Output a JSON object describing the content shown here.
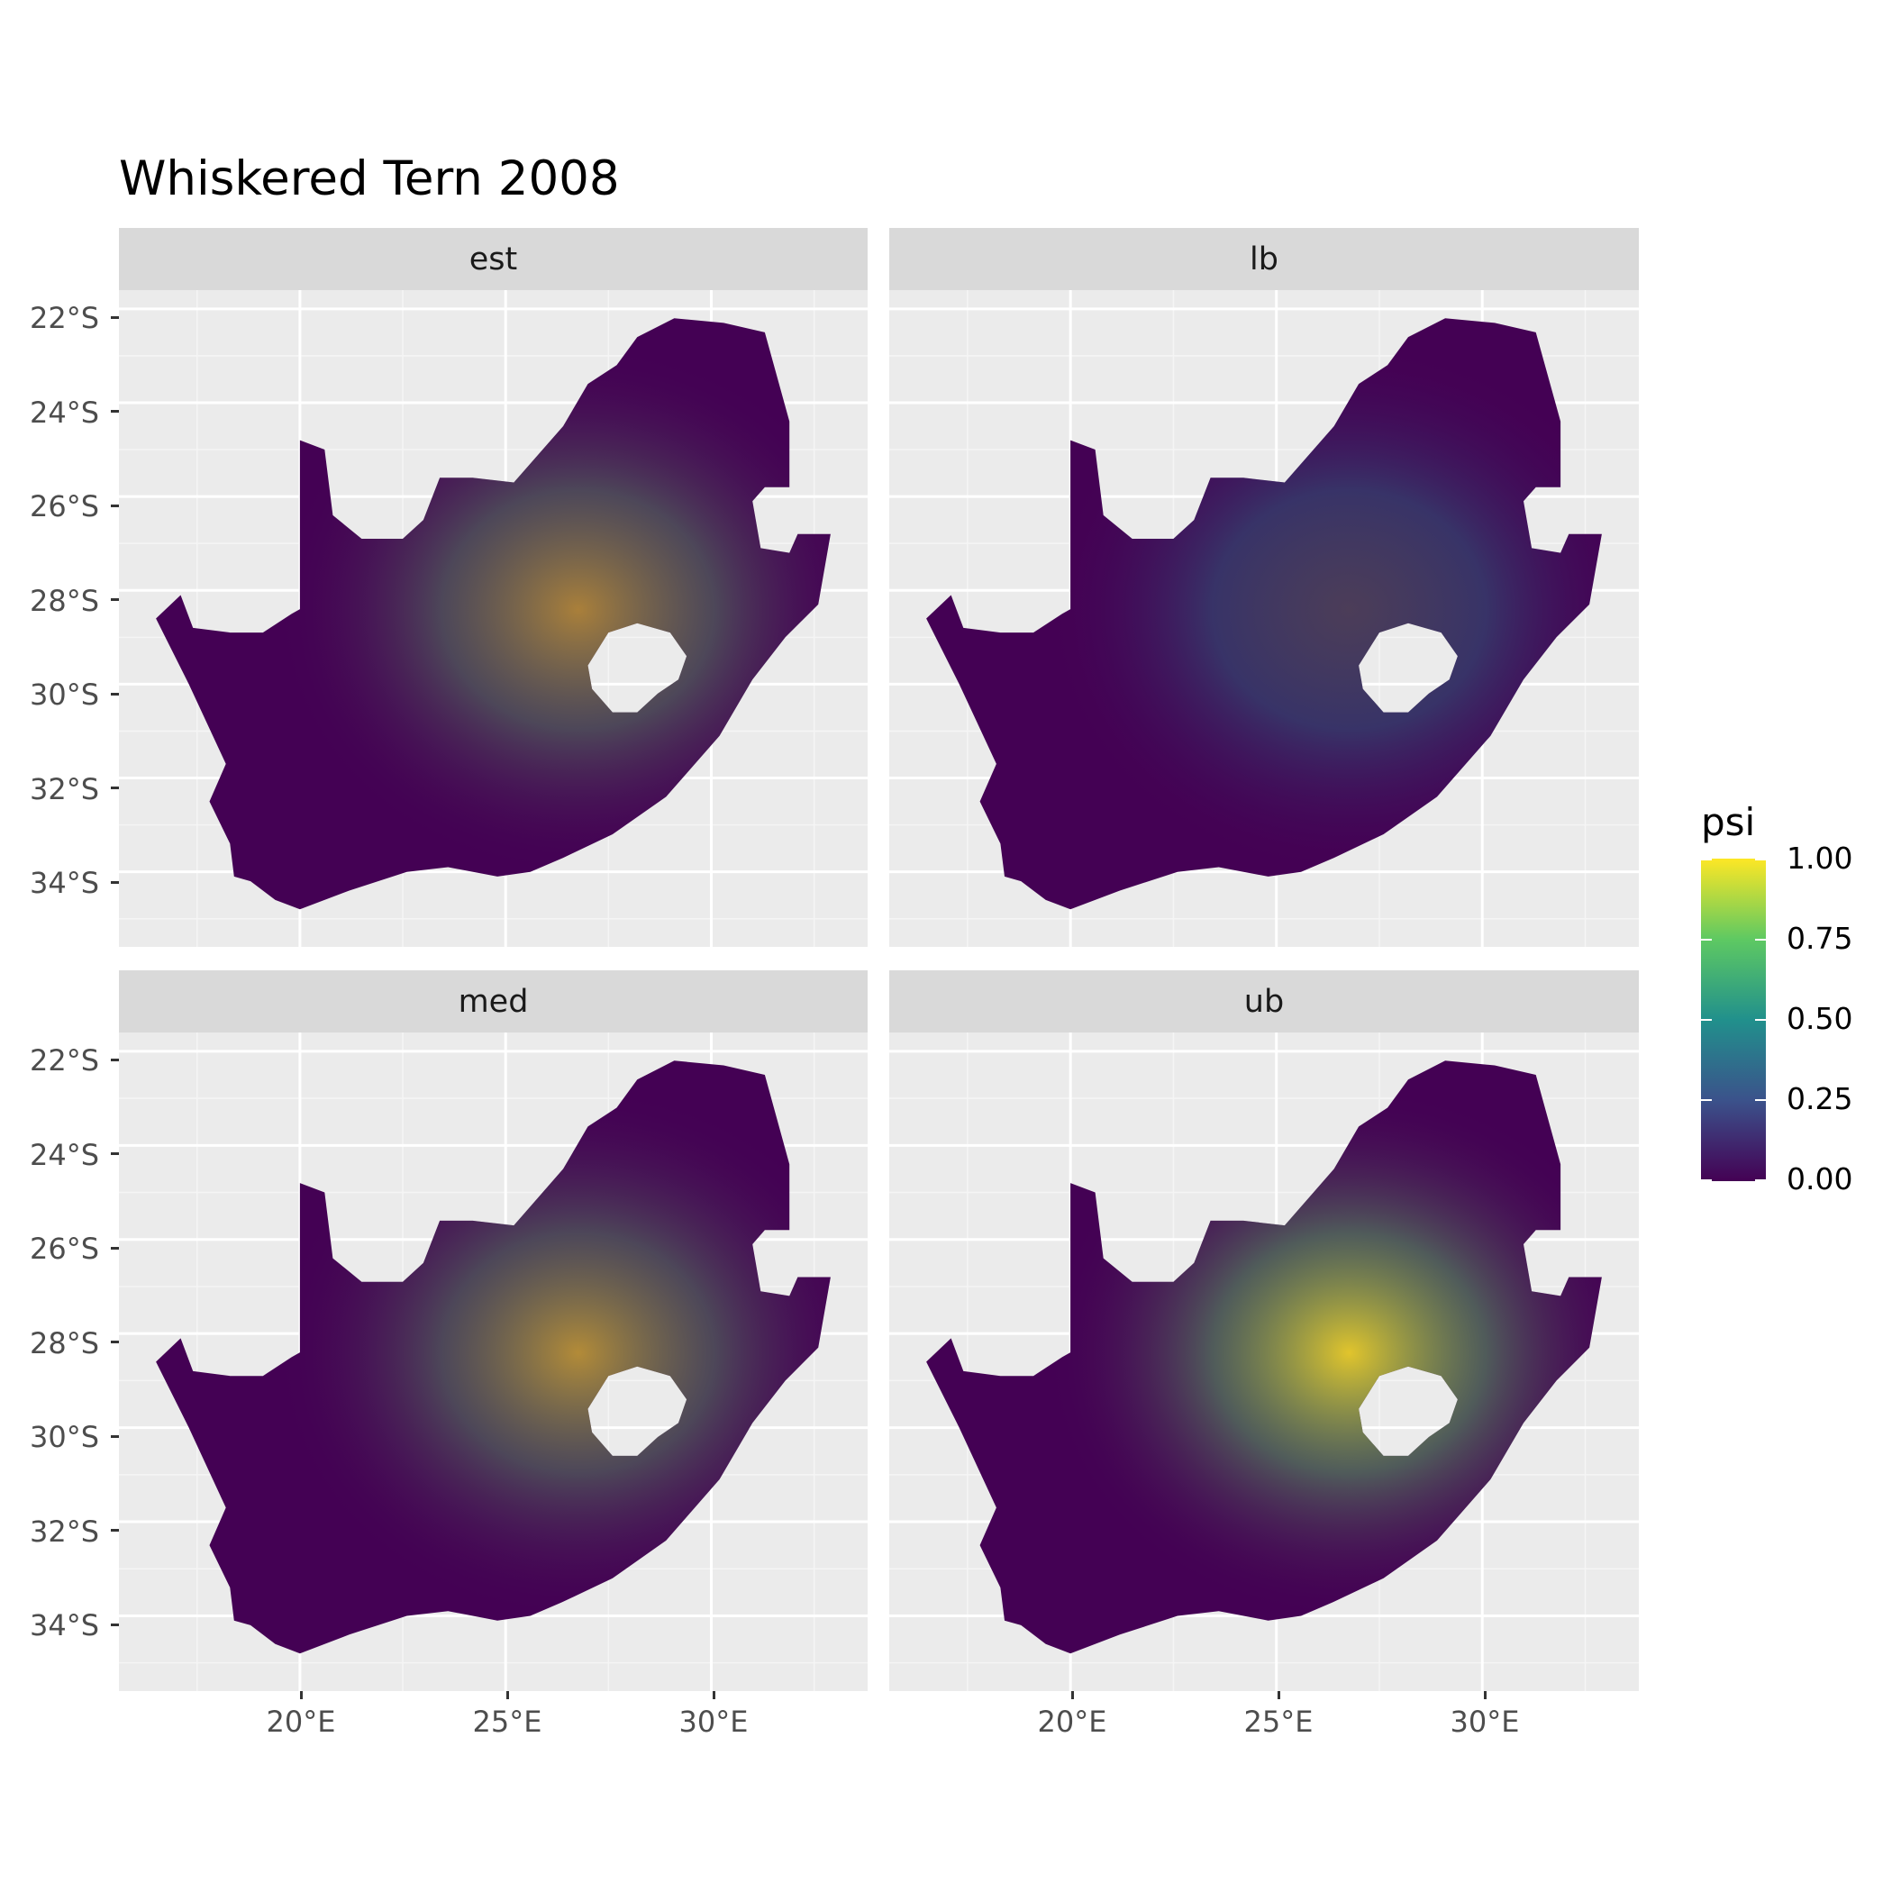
{
  "title": "Whiskered Tern 2008",
  "chart_data": {
    "type": "heatmap",
    "title": "Whiskered Tern 2008",
    "panels": [
      "est",
      "lb",
      "med",
      "ub"
    ],
    "value_label": "psi",
    "value_range": [
      0,
      1
    ],
    "x_ticks": [
      "20°E",
      "25°E",
      "30°E"
    ],
    "x_tick_values": [
      20,
      25,
      30
    ],
    "y_ticks": [
      "22°S",
      "24°S",
      "26°S",
      "28°S",
      "30°S",
      "32°S",
      "34°S"
    ],
    "y_tick_values": [
      -22,
      -24,
      -26,
      -28,
      -30,
      -32,
      -34
    ],
    "xlim": [
      15.6,
      33.8
    ],
    "ylim": [
      -35.6,
      -21.6
    ],
    "grid": true,
    "legend": {
      "title": "psi",
      "labels": [
        "1.00",
        "0.75",
        "0.50",
        "0.25",
        "0.00"
      ],
      "placement": "right"
    },
    "colormap": [
      "#440154",
      "#3b528b",
      "#21908c",
      "#5ec962",
      "#fde725"
    ]
  },
  "panel_style": {
    "background": "#ebebeb",
    "grid_color": "#ffffff",
    "strip_color": "#d9d9d9",
    "land_base_color": "#440154"
  }
}
